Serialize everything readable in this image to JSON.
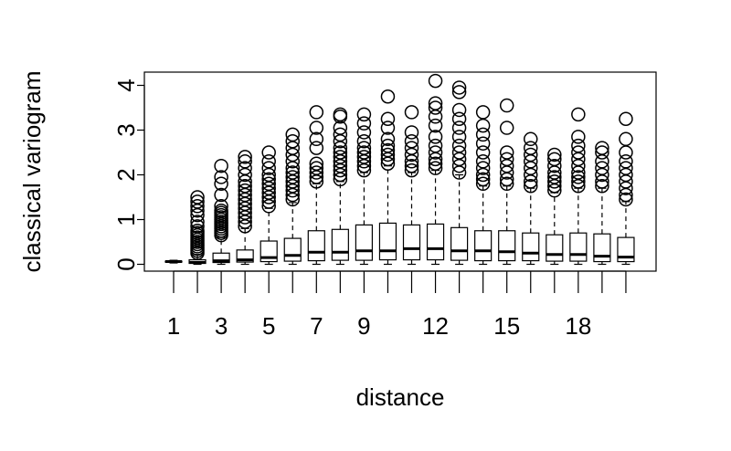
{
  "chart_data": {
    "type": "boxplot",
    "xlabel": "distance",
    "ylabel": "classical variogram",
    "ylim": [
      -0.15,
      4.3
    ],
    "y_ticks": [
      0,
      1,
      2,
      3,
      4
    ],
    "x_tick_labels": [
      "1",
      "3",
      "5",
      "7",
      "9",
      "12",
      "15",
      "18"
    ],
    "x_tick_label_positions": [
      1,
      3,
      5,
      7,
      9,
      12,
      15,
      18
    ],
    "categories": [
      "1",
      "2",
      "3",
      "4",
      "5",
      "6",
      "7",
      "8",
      "9",
      "10",
      "11",
      "12",
      "13",
      "14",
      "15",
      "16",
      "17",
      "18",
      "19",
      "20"
    ],
    "boxes": [
      {
        "min": 0.03,
        "q1": 0.05,
        "median": 0.06,
        "q3": 0.07,
        "max": 0.09,
        "outliers": []
      },
      {
        "min": 0.0,
        "q1": 0.02,
        "median": 0.04,
        "q3": 0.1,
        "max": 0.22,
        "outliers": [
          0.25,
          0.3,
          0.35,
          0.4,
          0.45,
          0.5,
          0.55,
          0.6,
          0.65,
          0.7,
          0.75,
          0.85,
          0.95,
          1.1,
          1.2,
          1.3,
          1.4,
          1.5
        ]
      },
      {
        "min": 0.0,
        "q1": 0.04,
        "median": 0.08,
        "q3": 0.25,
        "max": 0.6,
        "outliers": [
          0.65,
          0.7,
          0.75,
          0.8,
          0.85,
          0.9,
          0.95,
          1.0,
          1.05,
          1.1,
          1.15,
          1.2,
          1.3,
          1.55,
          1.8,
          1.95,
          2.2
        ]
      },
      {
        "min": 0.0,
        "q1": 0.05,
        "median": 0.1,
        "q3": 0.32,
        "max": 0.8,
        "outliers": [
          0.85,
          0.95,
          1.05,
          1.15,
          1.25,
          1.35,
          1.45,
          1.55,
          1.65,
          1.75,
          1.85,
          2.0,
          2.15,
          2.3,
          2.4
        ]
      },
      {
        "min": 0.0,
        "q1": 0.06,
        "median": 0.15,
        "q3": 0.52,
        "max": 1.25,
        "outliers": [
          1.3,
          1.4,
          1.5,
          1.6,
          1.7,
          1.8,
          1.9,
          2.0,
          2.15,
          2.3,
          2.5
        ]
      },
      {
        "min": 0.0,
        "q1": 0.07,
        "median": 0.2,
        "q3": 0.58,
        "max": 1.38,
        "outliers": [
          1.45,
          1.55,
          1.65,
          1.75,
          1.85,
          1.95,
          2.05,
          2.15,
          2.3,
          2.45,
          2.6,
          2.75,
          2.9
        ]
      },
      {
        "min": 0.0,
        "q1": 0.08,
        "median": 0.27,
        "q3": 0.75,
        "max": 1.8,
        "outliers": [
          1.85,
          1.95,
          2.05,
          2.15,
          2.25,
          2.6,
          2.8,
          3.05,
          3.4
        ]
      },
      {
        "min": 0.0,
        "q1": 0.09,
        "median": 0.27,
        "q3": 0.78,
        "max": 1.85,
        "outliers": [
          1.9,
          2.0,
          2.1,
          2.2,
          2.3,
          2.4,
          2.5,
          2.6,
          2.75,
          2.9,
          3.05,
          3.3,
          3.35
        ]
      },
      {
        "min": 0.0,
        "q1": 0.09,
        "median": 0.3,
        "q3": 0.88,
        "max": 2.05,
        "outliers": [
          2.1,
          2.2,
          2.3,
          2.4,
          2.5,
          2.6,
          2.75,
          2.95,
          3.15,
          3.35
        ]
      },
      {
        "min": 0.0,
        "q1": 0.1,
        "median": 0.3,
        "q3": 0.92,
        "max": 2.2,
        "outliers": [
          2.25,
          2.35,
          2.45,
          2.55,
          2.65,
          2.8,
          3.05,
          3.25,
          3.75
        ]
      },
      {
        "min": 0.0,
        "q1": 0.1,
        "median": 0.35,
        "q3": 0.88,
        "max": 2.05,
        "outliers": [
          2.1,
          2.2,
          2.3,
          2.45,
          2.6,
          2.75,
          2.95,
          3.4
        ]
      },
      {
        "min": 0.0,
        "q1": 0.1,
        "median": 0.35,
        "q3": 0.9,
        "max": 2.1,
        "outliers": [
          2.15,
          2.25,
          2.35,
          2.5,
          2.65,
          2.85,
          3.1,
          3.3,
          3.5,
          3.6,
          4.1
        ]
      },
      {
        "min": 0.0,
        "q1": 0.09,
        "median": 0.3,
        "q3": 0.82,
        "max": 2.0,
        "outliers": [
          2.05,
          2.2,
          2.35,
          2.5,
          2.65,
          2.85,
          3.05,
          3.25,
          3.45,
          3.85,
          3.95
        ]
      },
      {
        "min": 0.0,
        "q1": 0.08,
        "median": 0.3,
        "q3": 0.75,
        "max": 1.75,
        "outliers": [
          1.8,
          1.9,
          2.0,
          2.15,
          2.3,
          2.5,
          2.7,
          2.9,
          3.1,
          3.4
        ]
      },
      {
        "min": 0.0,
        "q1": 0.08,
        "median": 0.28,
        "q3": 0.75,
        "max": 1.75,
        "outliers": [
          1.8,
          1.9,
          2.05,
          2.2,
          2.35,
          2.5,
          3.05,
          3.55
        ]
      },
      {
        "min": 0.0,
        "q1": 0.08,
        "median": 0.25,
        "q3": 0.7,
        "max": 1.7,
        "outliers": [
          1.75,
          1.85,
          2.0,
          2.15,
          2.3,
          2.45,
          2.6,
          2.8
        ]
      },
      {
        "min": 0.0,
        "q1": 0.07,
        "median": 0.22,
        "q3": 0.66,
        "max": 1.6,
        "outliers": [
          1.65,
          1.75,
          1.85,
          1.95,
          2.05,
          2.2,
          2.35,
          2.45
        ]
      },
      {
        "min": 0.0,
        "q1": 0.07,
        "median": 0.22,
        "q3": 0.7,
        "max": 1.7,
        "outliers": [
          1.75,
          1.85,
          1.95,
          2.05,
          2.2,
          2.35,
          2.5,
          2.65,
          2.85,
          3.35
        ]
      },
      {
        "min": 0.0,
        "q1": 0.06,
        "median": 0.18,
        "q3": 0.68,
        "max": 1.7,
        "outliers": [
          1.75,
          1.85,
          2.0,
          2.15,
          2.3,
          2.5,
          2.6
        ]
      },
      {
        "min": 0.0,
        "q1": 0.06,
        "median": 0.16,
        "q3": 0.6,
        "max": 1.4,
        "outliers": [
          1.45,
          1.55,
          1.7,
          1.85,
          2.0,
          2.15,
          2.3,
          2.5,
          2.8,
          3.25
        ]
      }
    ],
    "grid": false,
    "colors": {
      "stroke": "#000000",
      "fill": "#ffffff",
      "background": "#ffffff"
    }
  }
}
